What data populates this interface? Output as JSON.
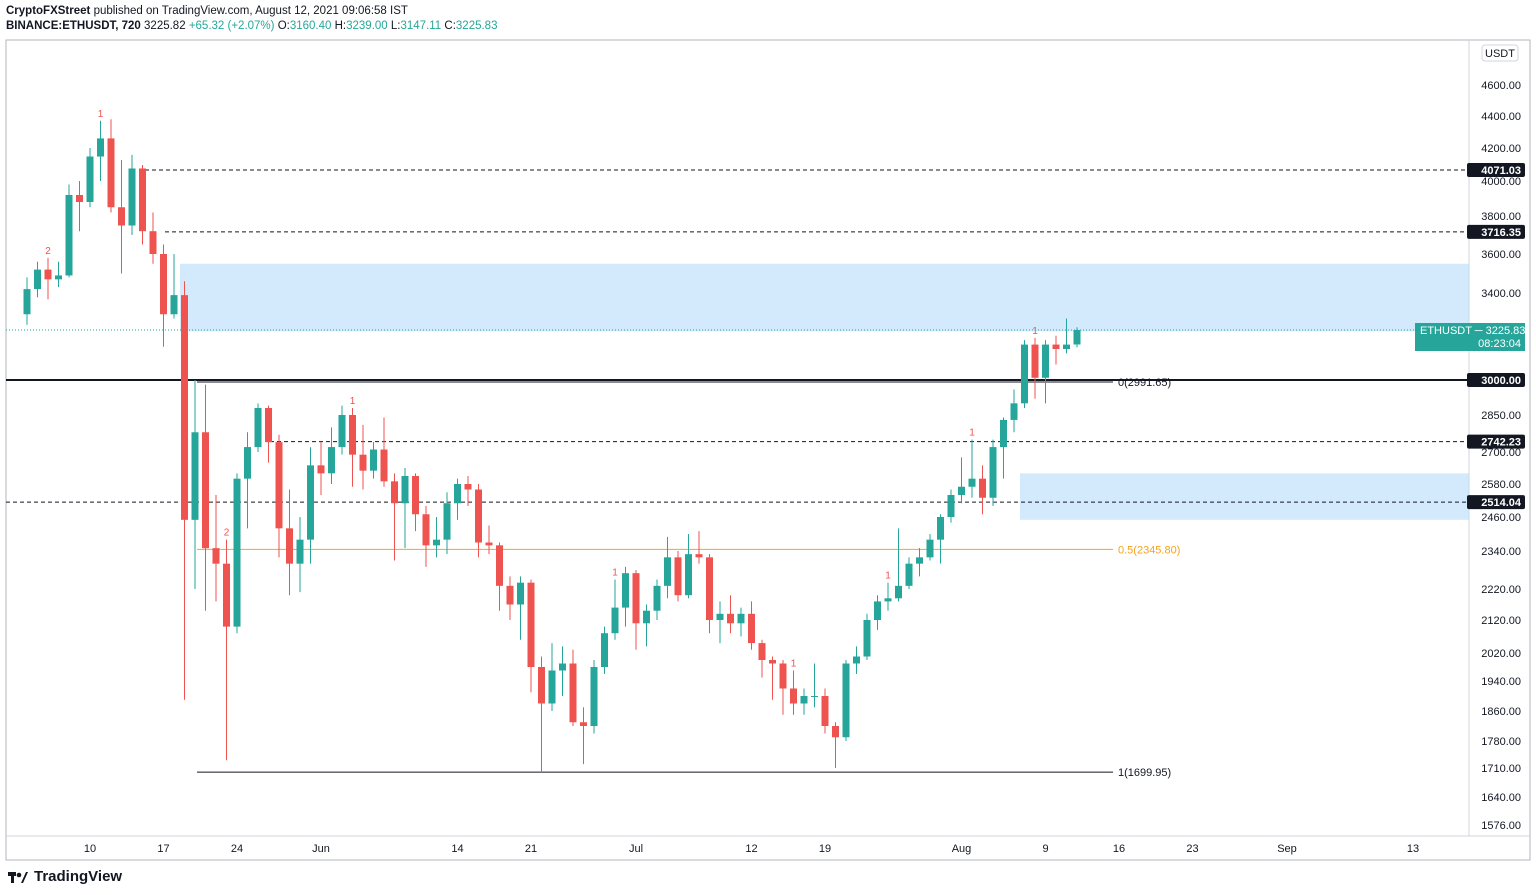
{
  "header": {
    "publisher": "CryptoFXStreet",
    "published_text": "published on TradingView.com, August 12, 2021 09:06:58 IST",
    "symbol": "BINANCE:ETHUSDT, 720",
    "last": "3225.82",
    "change": "+65.32 (+2.07%)",
    "o_label": "O:",
    "o_value": "3160.40",
    "h_label": "H:",
    "h_value": "3239.00",
    "l_label": "L:",
    "l_value": "3147.11",
    "c_label": "C:",
    "c_value": "3225.83"
  },
  "footer": {
    "brand": "TradingView",
    "logo_icon": "tradingview-logo-icon"
  },
  "colors": {
    "up": "#26a69a",
    "down": "#ef5350",
    "zone": "#bbdefb",
    "fib_orange": "#f7a21b",
    "label_bg": "#131722"
  },
  "chart_data": {
    "type": "candlestick",
    "currency_label": "USDT",
    "y_ticks": [
      "4600.00",
      "4400.00",
      "4200.00",
      "4000.00",
      "3800.00",
      "3600.00",
      "3400.00",
      "2850.00",
      "2700.00",
      "2580.00",
      "2460.00",
      "2340.00",
      "2220.00",
      "2120.00",
      "2020.00",
      "1940.00",
      "1860.00",
      "1780.00",
      "1710.00",
      "1640.00",
      "1576.00"
    ],
    "x_ticks": [
      "10",
      "17",
      "24",
      "Jun",
      "14",
      "21",
      "Jul",
      "12",
      "19",
      "Aug",
      "9",
      "16",
      "23",
      "Sep",
      "13"
    ],
    "price_levels": [
      {
        "label": "4071.03",
        "value": 4071.03
      },
      {
        "label": "3716.35",
        "value": 3716.35
      },
      {
        "label": "3000.00",
        "value": 3000.0
      },
      {
        "label": "2742.23",
        "value": 2742.23
      },
      {
        "label": "2514.04",
        "value": 2514.04
      }
    ],
    "last_price": {
      "symbol": "ETHUSDT",
      "price": "3225.83",
      "countdown": "08:23:04"
    },
    "zones": [
      {
        "from": 3220,
        "to": 3550
      },
      {
        "from": 2450,
        "to": 2620
      }
    ],
    "fib_levels": [
      {
        "label": "0(2991.65)",
        "value": 2991.65
      },
      {
        "label": "0.5(2345.80)",
        "value": 2345.8
      },
      {
        "label": "1(1699.95)",
        "value": 1699.95
      }
    ],
    "td_markers": [
      {
        "text": "2",
        "date": "2021-05-06"
      },
      {
        "text": "1",
        "date": "2021-05-11"
      },
      {
        "text": "2",
        "date": "2021-05-23"
      },
      {
        "text": "1",
        "date": "2021-06-04"
      },
      {
        "text": "1",
        "date": "2021-06-29"
      },
      {
        "text": "1",
        "date": "2021-07-16"
      },
      {
        "text": "1",
        "date": "2021-07-25"
      },
      {
        "text": "1",
        "date": "2021-08-02"
      },
      {
        "text": "1",
        "date": "2021-08-08"
      }
    ],
    "candles": [
      {
        "t": "2021-05-04",
        "o": 3300,
        "h": 3480,
        "l": 3250,
        "c": 3420
      },
      {
        "t": "2021-05-05",
        "o": 3420,
        "h": 3560,
        "l": 3380,
        "c": 3520
      },
      {
        "t": "2021-05-06",
        "o": 3520,
        "h": 3580,
        "l": 3370,
        "c": 3470
      },
      {
        "t": "2021-05-07",
        "o": 3470,
        "h": 3560,
        "l": 3430,
        "c": 3490
      },
      {
        "t": "2021-05-08",
        "o": 3490,
        "h": 3980,
        "l": 3480,
        "c": 3920
      },
      {
        "t": "2021-05-09",
        "o": 3920,
        "h": 4000,
        "l": 3720,
        "c": 3880
      },
      {
        "t": "2021-05-10",
        "o": 3880,
        "h": 4200,
        "l": 3850,
        "c": 4150
      },
      {
        "t": "2021-05-11",
        "o": 4150,
        "h": 4370,
        "l": 4000,
        "c": 4260
      },
      {
        "t": "2021-05-12",
        "o": 4260,
        "h": 4380,
        "l": 3820,
        "c": 3850
      },
      {
        "t": "2021-05-13",
        "o": 3850,
        "h": 4130,
        "l": 3500,
        "c": 3750
      },
      {
        "t": "2021-05-14",
        "o": 3750,
        "h": 4160,
        "l": 3700,
        "c": 4080
      },
      {
        "t": "2021-05-15",
        "o": 4080,
        "h": 4100,
        "l": 3650,
        "c": 3720
      },
      {
        "t": "2021-05-16",
        "o": 3720,
        "h": 3820,
        "l": 3550,
        "c": 3600
      },
      {
        "t": "2021-05-17",
        "o": 3600,
        "h": 3650,
        "l": 3150,
        "c": 3300
      },
      {
        "t": "2021-05-18",
        "o": 3300,
        "h": 3600,
        "l": 3280,
        "c": 3390
      },
      {
        "t": "2021-05-19",
        "o": 3390,
        "h": 3460,
        "l": 1890,
        "c": 2450
      },
      {
        "t": "2021-05-20",
        "o": 2450,
        "h": 3000,
        "l": 2220,
        "c": 2780
      },
      {
        "t": "2021-05-21",
        "o": 2780,
        "h": 2980,
        "l": 2150,
        "c": 2350
      },
      {
        "t": "2021-05-22",
        "o": 2350,
        "h": 2540,
        "l": 2180,
        "c": 2300
      },
      {
        "t": "2021-05-23",
        "o": 2300,
        "h": 2380,
        "l": 1730,
        "c": 2100
      },
      {
        "t": "2021-05-24",
        "o": 2100,
        "h": 2620,
        "l": 2080,
        "c": 2600
      },
      {
        "t": "2021-05-25",
        "o": 2600,
        "h": 2780,
        "l": 2420,
        "c": 2720
      },
      {
        "t": "2021-05-26",
        "o": 2720,
        "h": 2900,
        "l": 2700,
        "c": 2880
      },
      {
        "t": "2021-05-27",
        "o": 2880,
        "h": 2890,
        "l": 2660,
        "c": 2740
      },
      {
        "t": "2021-05-28",
        "o": 2740,
        "h": 2770,
        "l": 2320,
        "c": 2420
      },
      {
        "t": "2021-05-29",
        "o": 2420,
        "h": 2560,
        "l": 2200,
        "c": 2300
      },
      {
        "t": "2021-05-30",
        "o": 2300,
        "h": 2460,
        "l": 2210,
        "c": 2380
      },
      {
        "t": "2021-05-31",
        "o": 2380,
        "h": 2720,
        "l": 2300,
        "c": 2650
      },
      {
        "t": "2021-06-01",
        "o": 2650,
        "h": 2740,
        "l": 2540,
        "c": 2620
      },
      {
        "t": "2021-06-02",
        "o": 2620,
        "h": 2800,
        "l": 2580,
        "c": 2720
      },
      {
        "t": "2021-06-03",
        "o": 2720,
        "h": 2890,
        "l": 2690,
        "c": 2850
      },
      {
        "t": "2021-06-04",
        "o": 2850,
        "h": 2880,
        "l": 2570,
        "c": 2690
      },
      {
        "t": "2021-06-05",
        "o": 2690,
        "h": 2810,
        "l": 2560,
        "c": 2630
      },
      {
        "t": "2021-06-06",
        "o": 2630,
        "h": 2740,
        "l": 2600,
        "c": 2710
      },
      {
        "t": "2021-06-07",
        "o": 2710,
        "h": 2840,
        "l": 2570,
        "c": 2590
      },
      {
        "t": "2021-06-08",
        "o": 2590,
        "h": 2620,
        "l": 2310,
        "c": 2510
      },
      {
        "t": "2021-06-09",
        "o": 2510,
        "h": 2640,
        "l": 2350,
        "c": 2610
      },
      {
        "t": "2021-06-10",
        "o": 2610,
        "h": 2620,
        "l": 2410,
        "c": 2470
      },
      {
        "t": "2021-06-11",
        "o": 2470,
        "h": 2500,
        "l": 2290,
        "c": 2360
      },
      {
        "t": "2021-06-12",
        "o": 2360,
        "h": 2460,
        "l": 2320,
        "c": 2380
      },
      {
        "t": "2021-06-13",
        "o": 2380,
        "h": 2550,
        "l": 2330,
        "c": 2510
      },
      {
        "t": "2021-06-14",
        "o": 2510,
        "h": 2600,
        "l": 2450,
        "c": 2580
      },
      {
        "t": "2021-06-15",
        "o": 2580,
        "h": 2610,
        "l": 2500,
        "c": 2560
      },
      {
        "t": "2021-06-16",
        "o": 2560,
        "h": 2580,
        "l": 2320,
        "c": 2370
      },
      {
        "t": "2021-06-17",
        "o": 2370,
        "h": 2430,
        "l": 2330,
        "c": 2360
      },
      {
        "t": "2021-06-18",
        "o": 2360,
        "h": 2370,
        "l": 2150,
        "c": 2230
      },
      {
        "t": "2021-06-19",
        "o": 2230,
        "h": 2260,
        "l": 2120,
        "c": 2170
      },
      {
        "t": "2021-06-20",
        "o": 2170,
        "h": 2260,
        "l": 2060,
        "c": 2240
      },
      {
        "t": "2021-06-21",
        "o": 2240,
        "h": 2250,
        "l": 1910,
        "c": 1980
      },
      {
        "t": "2021-06-22",
        "o": 1980,
        "h": 2010,
        "l": 1700,
        "c": 1880
      },
      {
        "t": "2021-06-23",
        "o": 1880,
        "h": 2050,
        "l": 1860,
        "c": 1970
      },
      {
        "t": "2021-06-24",
        "o": 1970,
        "h": 2040,
        "l": 1900,
        "c": 1990
      },
      {
        "t": "2021-06-25",
        "o": 1990,
        "h": 2030,
        "l": 1820,
        "c": 1830
      },
      {
        "t": "2021-06-26",
        "o": 1830,
        "h": 1870,
        "l": 1720,
        "c": 1820
      },
      {
        "t": "2021-06-27",
        "o": 1820,
        "h": 2000,
        "l": 1800,
        "c": 1980
      },
      {
        "t": "2021-06-28",
        "o": 1980,
        "h": 2100,
        "l": 1960,
        "c": 2080
      },
      {
        "t": "2021-06-29",
        "o": 2080,
        "h": 2250,
        "l": 2060,
        "c": 2160
      },
      {
        "t": "2021-06-30",
        "o": 2160,
        "h": 2290,
        "l": 2100,
        "c": 2270
      },
      {
        "t": "2021-07-01",
        "o": 2270,
        "h": 2280,
        "l": 2030,
        "c": 2110
      },
      {
        "t": "2021-07-02",
        "o": 2110,
        "h": 2170,
        "l": 2040,
        "c": 2150
      },
      {
        "t": "2021-07-03",
        "o": 2150,
        "h": 2250,
        "l": 2120,
        "c": 2230
      },
      {
        "t": "2021-07-04",
        "o": 2230,
        "h": 2390,
        "l": 2190,
        "c": 2320
      },
      {
        "t": "2021-07-05",
        "o": 2320,
        "h": 2340,
        "l": 2180,
        "c": 2200
      },
      {
        "t": "2021-07-06",
        "o": 2200,
        "h": 2400,
        "l": 2190,
        "c": 2330
      },
      {
        "t": "2021-07-07",
        "o": 2330,
        "h": 2410,
        "l": 2300,
        "c": 2320
      },
      {
        "t": "2021-07-08",
        "o": 2320,
        "h": 2330,
        "l": 2080,
        "c": 2120
      },
      {
        "t": "2021-07-09",
        "o": 2120,
        "h": 2180,
        "l": 2050,
        "c": 2140
      },
      {
        "t": "2021-07-10",
        "o": 2140,
        "h": 2200,
        "l": 2080,
        "c": 2110
      },
      {
        "t": "2021-07-11",
        "o": 2110,
        "h": 2160,
        "l": 2070,
        "c": 2140
      },
      {
        "t": "2021-07-12",
        "o": 2140,
        "h": 2180,
        "l": 2030,
        "c": 2050
      },
      {
        "t": "2021-07-13",
        "o": 2050,
        "h": 2060,
        "l": 1950,
        "c": 2000
      },
      {
        "t": "2021-07-14",
        "o": 2000,
        "h": 2010,
        "l": 1890,
        "c": 1990
      },
      {
        "t": "2021-07-15",
        "o": 1990,
        "h": 2000,
        "l": 1850,
        "c": 1920
      },
      {
        "t": "2021-07-16",
        "o": 1920,
        "h": 1970,
        "l": 1850,
        "c": 1880
      },
      {
        "t": "2021-07-17",
        "o": 1880,
        "h": 1920,
        "l": 1850,
        "c": 1900
      },
      {
        "t": "2021-07-18",
        "o": 1900,
        "h": 1990,
        "l": 1870,
        "c": 1900
      },
      {
        "t": "2021-07-19",
        "o": 1900,
        "h": 1920,
        "l": 1800,
        "c": 1820
      },
      {
        "t": "2021-07-20",
        "o": 1820,
        "h": 1830,
        "l": 1710,
        "c": 1790
      },
      {
        "t": "2021-07-21",
        "o": 1790,
        "h": 2000,
        "l": 1780,
        "c": 1990
      },
      {
        "t": "2021-07-22",
        "o": 1990,
        "h": 2040,
        "l": 1960,
        "c": 2010
      },
      {
        "t": "2021-07-23",
        "o": 2010,
        "h": 2140,
        "l": 2000,
        "c": 2120
      },
      {
        "t": "2021-07-24",
        "o": 2120,
        "h": 2200,
        "l": 2090,
        "c": 2180
      },
      {
        "t": "2021-07-25",
        "o": 2180,
        "h": 2240,
        "l": 2150,
        "c": 2190
      },
      {
        "t": "2021-07-26",
        "o": 2190,
        "h": 2420,
        "l": 2180,
        "c": 2230
      },
      {
        "t": "2021-07-27",
        "o": 2230,
        "h": 2320,
        "l": 2220,
        "c": 2300
      },
      {
        "t": "2021-07-28",
        "o": 2300,
        "h": 2350,
        "l": 2260,
        "c": 2320
      },
      {
        "t": "2021-07-29",
        "o": 2320,
        "h": 2400,
        "l": 2310,
        "c": 2380
      },
      {
        "t": "2021-07-30",
        "o": 2380,
        "h": 2470,
        "l": 2300,
        "c": 2460
      },
      {
        "t": "2021-07-31",
        "o": 2460,
        "h": 2560,
        "l": 2440,
        "c": 2540
      },
      {
        "t": "2021-08-01",
        "o": 2540,
        "h": 2680,
        "l": 2510,
        "c": 2570
      },
      {
        "t": "2021-08-02",
        "o": 2570,
        "h": 2750,
        "l": 2530,
        "c": 2600
      },
      {
        "t": "2021-08-03",
        "o": 2600,
        "h": 2650,
        "l": 2470,
        "c": 2530
      },
      {
        "t": "2021-08-04",
        "o": 2530,
        "h": 2750,
        "l": 2500,
        "c": 2720
      },
      {
        "t": "2021-08-05",
        "o": 2720,
        "h": 2840,
        "l": 2600,
        "c": 2830
      },
      {
        "t": "2021-08-06",
        "o": 2830,
        "h": 2960,
        "l": 2780,
        "c": 2900
      },
      {
        "t": "2021-08-07",
        "o": 2900,
        "h": 3180,
        "l": 2880,
        "c": 3160
      },
      {
        "t": "2021-08-08",
        "o": 3160,
        "h": 3190,
        "l": 2920,
        "c": 3010
      },
      {
        "t": "2021-08-09",
        "o": 3010,
        "h": 3180,
        "l": 2900,
        "c": 3160
      },
      {
        "t": "2021-08-10",
        "o": 3160,
        "h": 3200,
        "l": 3070,
        "c": 3140
      },
      {
        "t": "2021-08-11",
        "o": 3140,
        "h": 3280,
        "l": 3120,
        "c": 3160
      },
      {
        "t": "2021-08-12",
        "o": 3160.4,
        "h": 3239.0,
        "l": 3147.11,
        "c": 3225.83
      }
    ]
  }
}
